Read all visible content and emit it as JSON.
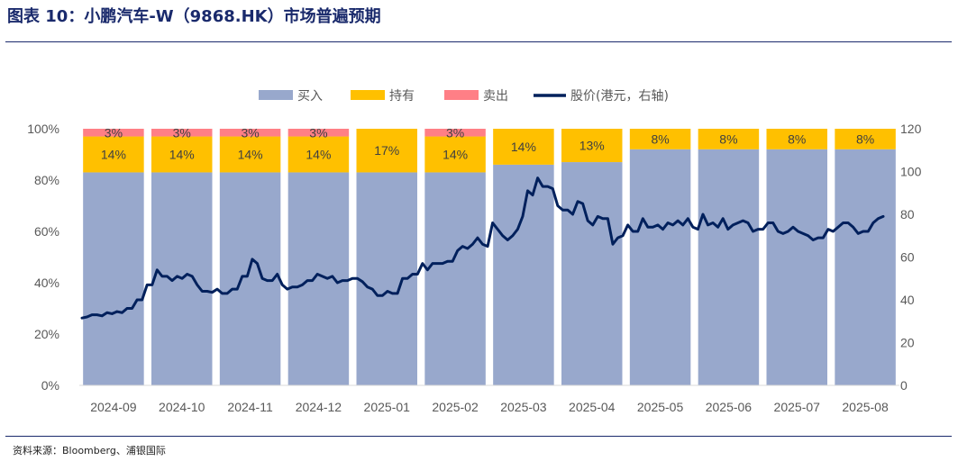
{
  "title": "图表 10：小鹏汽车-W（9868.HK）市场普遍预期",
  "source": "资料来源：Bloomberg、浦银国际",
  "colors": {
    "buy": "#98a8cc",
    "hold": "#ffc000",
    "sell": "#ff7f86",
    "price": "#00205c",
    "title": "#1a2a6c"
  },
  "chart_data": {
    "type": "bar",
    "stacked": true,
    "categories": [
      "2024-09",
      "2024-10",
      "2024-11",
      "2024-12",
      "2025-01",
      "2025-02",
      "2025-03",
      "2025-04",
      "2025-05",
      "2025-06",
      "2025-07",
      "2025-08"
    ],
    "series": [
      {
        "name": "买入",
        "values": [
          83,
          83,
          83,
          83,
          83,
          83,
          86,
          87,
          92,
          92,
          92,
          92
        ]
      },
      {
        "name": "持有",
        "values": [
          14,
          14,
          14,
          14,
          17,
          14,
          14,
          13,
          8,
          8,
          8,
          8
        ]
      },
      {
        "name": "卖出",
        "values": [
          3,
          3,
          3,
          3,
          0,
          3,
          0,
          0,
          0,
          0,
          0,
          0
        ]
      }
    ],
    "data_labels": {
      "持有": [
        "14%",
        "14%",
        "14%",
        "14%",
        "17%",
        "14%",
        "14%",
        "13%",
        "8%",
        "8%",
        "8%",
        "8%"
      ],
      "卖出": [
        "3%",
        "3%",
        "3%",
        "3%",
        "",
        "3%",
        "",
        "",
        "",
        "",
        "",
        ""
      ]
    },
    "line_series": {
      "name": "股价(港元，右轴)",
      "axis": "right",
      "values": [
        31.5,
        32,
        33,
        33,
        32.5,
        34,
        33.5,
        34.5,
        34,
        36,
        36,
        40,
        40,
        47,
        47,
        54,
        51,
        51,
        49,
        51,
        50,
        52,
        51,
        47,
        44,
        44,
        43.5,
        45,
        43,
        43,
        45,
        45,
        51,
        51,
        59,
        57,
        50,
        49,
        49,
        52,
        47,
        45,
        46,
        46,
        47,
        49,
        49,
        52,
        51,
        50,
        51,
        48,
        49,
        49,
        50,
        50,
        48.5,
        46,
        45,
        42,
        42,
        44,
        43,
        43,
        50,
        50,
        52,
        52,
        57,
        54,
        57,
        57,
        57,
        58,
        58,
        63,
        65,
        64,
        66,
        69,
        66,
        65,
        76,
        73,
        70,
        68,
        70,
        73,
        79,
        91,
        89,
        97,
        93,
        93,
        92,
        84,
        82,
        82,
        80,
        86,
        85,
        77,
        75,
        79,
        78,
        78,
        66,
        69,
        70,
        75,
        72,
        72,
        78,
        74,
        74,
        75,
        73,
        76,
        75,
        77,
        75,
        78,
        74,
        73,
        80,
        75,
        76,
        74,
        78,
        73,
        75,
        76,
        77,
        76,
        72,
        73,
        73,
        76,
        76,
        72,
        71,
        72,
        74,
        72,
        71,
        70,
        68,
        69,
        69,
        73,
        72,
        74,
        76,
        76,
        74,
        71,
        72,
        72,
        76,
        78,
        79
      ]
    },
    "ylim_left": [
      0,
      100
    ],
    "ylim_right": [
      0,
      120
    ],
    "yticks_left": [
      "0%",
      "20%",
      "40%",
      "60%",
      "80%",
      "100%"
    ],
    "yticks_right": [
      "0",
      "20",
      "40",
      "60",
      "80",
      "100",
      "120"
    ],
    "legend": {
      "position": "top",
      "items": [
        {
          "name": "买入",
          "kind": "box",
          "color": "#98a8cc"
        },
        {
          "name": "持有",
          "kind": "box",
          "color": "#ffc000"
        },
        {
          "name": "卖出",
          "kind": "box",
          "color": "#ff7f86"
        },
        {
          "name": "股价(港元，右轴)",
          "kind": "line",
          "color": "#00205c"
        }
      ]
    }
  }
}
